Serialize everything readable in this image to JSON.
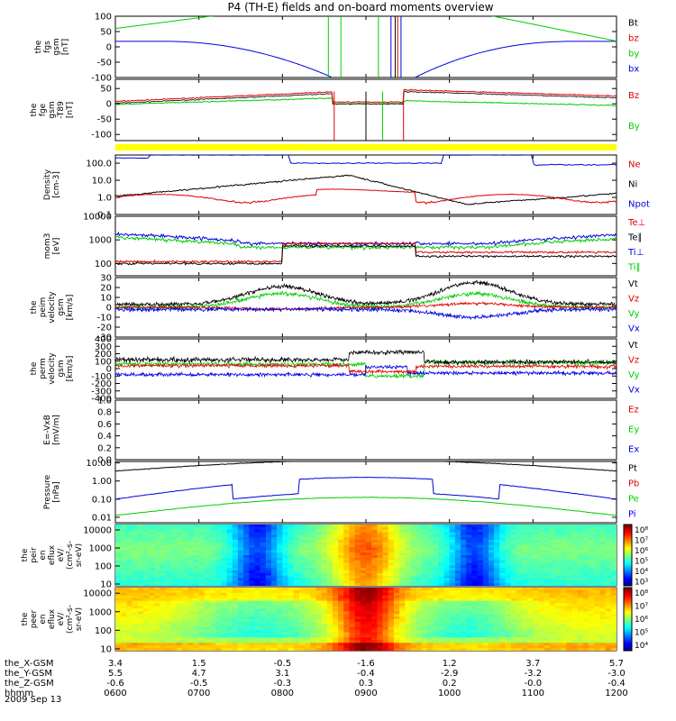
{
  "title": "P4 (TH-E) fields and on-board moments overview",
  "colors": {
    "black": "#000000",
    "red": "#dd0000",
    "green": "#00cc00",
    "blue": "#0000dd",
    "yellow": "#ffff00"
  },
  "x_ticks": [
    "0600",
    "0700",
    "0800",
    "0900",
    "1000",
    "1100",
    "1200"
  ],
  "ephemeris": {
    "rows": [
      {
        "label": "the_X-GSM",
        "values": [
          "3.4",
          "1.5",
          "-0.5",
          "-1.6",
          "1.2",
          "3.7",
          "5.7"
        ]
      },
      {
        "label": "the_Y-GSM",
        "values": [
          "5.5",
          "4.7",
          "3.1",
          "-0.4",
          "-2.9",
          "-3.2",
          "-3.0"
        ]
      },
      {
        "label": "the_Z-GSM",
        "values": [
          "-0.6",
          "-0.5",
          "-0.3",
          "0.3",
          "0.2",
          "-0.0",
          "-0.4"
        ]
      },
      {
        "label": "hhmm",
        "values": [
          "0600",
          "0700",
          "0800",
          "0900",
          "1000",
          "1100",
          "1200"
        ]
      }
    ],
    "date": "2009 Sep 13"
  },
  "chart_data": [
    {
      "type": "line",
      "id": "p1",
      "ylabel": [
        "the",
        "fgs",
        "gsm",
        "[nT]"
      ],
      "ylim": [
        -100,
        100
      ],
      "yticks": [
        "100",
        "50",
        "0",
        "-50",
        "-100"
      ],
      "legend": [
        {
          "name": "Bt",
          "color": "black"
        },
        {
          "name": "bz",
          "color": "red"
        },
        {
          "name": "by",
          "color": "green"
        },
        {
          "name": "bx",
          "color": "blue"
        }
      ]
    },
    {
      "type": "line",
      "id": "p2",
      "ylabel": [
        "the",
        "fge",
        "gsm",
        "-T89",
        "[nT]"
      ],
      "ylim": [
        -120,
        80
      ],
      "yticks": [
        "50",
        "0",
        "-50",
        "-100"
      ],
      "legend": [
        {
          "name": "Bz",
          "color": "red"
        },
        {
          "name": "By",
          "color": "green"
        }
      ]
    },
    {
      "type": "line",
      "id": "p3",
      "ylabel": [
        "Density",
        "[cm-3]"
      ],
      "log": true,
      "ylim": [
        0.1,
        300
      ],
      "yticks": [
        "100.0",
        "10.0",
        "1.0",
        "0.1"
      ],
      "legend": [
        {
          "name": "Ne",
          "color": "red"
        },
        {
          "name": "Ni",
          "color": "black"
        },
        {
          "name": "Npot",
          "color": "blue"
        }
      ]
    },
    {
      "type": "line",
      "id": "p4",
      "ylabel": [
        "mom3",
        "[eV]"
      ],
      "log": true,
      "ylim": [
        30,
        10000
      ],
      "yticks": [
        "10000",
        "1000",
        "100"
      ],
      "legend": [
        {
          "name": "Te⊥",
          "color": "red"
        },
        {
          "name": "Te∥",
          "color": "black"
        },
        {
          "name": "Ti⊥",
          "color": "blue"
        },
        {
          "name": "Ti∥",
          "color": "green"
        }
      ]
    },
    {
      "type": "line",
      "id": "p5",
      "ylabel": [
        "the",
        "peim",
        "velocity",
        "gsm",
        "[km/s]"
      ],
      "ylim": [
        -30,
        30
      ],
      "yticks": [
        "30",
        "20",
        "10",
        "0",
        "-10",
        "-20",
        "-30"
      ],
      "legend": [
        {
          "name": "Vt",
          "color": "black"
        },
        {
          "name": "Vz",
          "color": "red"
        },
        {
          "name": "Vy",
          "color": "green"
        },
        {
          "name": "Vx",
          "color": "blue"
        }
      ]
    },
    {
      "type": "line",
      "id": "p6",
      "ylabel": [
        "the",
        "perm",
        "velocity",
        "gsm",
        "[km/s]"
      ],
      "ylim": [
        -400,
        400
      ],
      "yticks": [
        "400",
        "300",
        "200",
        "100",
        "0",
        "-100",
        "-200",
        "-300",
        "-400"
      ],
      "legend": [
        {
          "name": "Vt",
          "color": "black"
        },
        {
          "name": "Vz",
          "color": "red"
        },
        {
          "name": "Vy",
          "color": "green"
        },
        {
          "name": "Vx",
          "color": "blue"
        }
      ]
    },
    {
      "type": "line",
      "id": "p7",
      "ylabel": [
        "E=-VxB",
        "[mV/m]"
      ],
      "ylim": [
        0,
        1
      ],
      "yticks": [
        "1.0",
        "0.8",
        "0.6",
        "0.4",
        "0.2",
        "0.0"
      ],
      "legend": [
        {
          "name": "Ez",
          "color": "red"
        },
        {
          "name": "Ey",
          "color": "green"
        },
        {
          "name": "Ex",
          "color": "blue"
        }
      ]
    },
    {
      "type": "line",
      "id": "p8",
      "ylabel": [
        "Pressure",
        "[nPa]"
      ],
      "log": true,
      "ylim": [
        0.005,
        12
      ],
      "yticks": [
        "10.00",
        "1.00",
        "0.10",
        "0.01"
      ],
      "legend": [
        {
          "name": "Pt",
          "color": "black"
        },
        {
          "name": "Pb",
          "color": "red"
        },
        {
          "name": "Pe",
          "color": "green"
        },
        {
          "name": "Pi",
          "color": "blue"
        }
      ]
    },
    {
      "type": "heatmap",
      "id": "p9",
      "ylabel": [
        "the",
        "peir",
        "en",
        "eflux",
        "eV/",
        "(cm²-s-",
        "sr-eV)"
      ],
      "yticks": [
        "10000",
        "1000",
        "100",
        "10"
      ],
      "colorbar": [
        "10⁸",
        "10⁷",
        "10⁶",
        "10⁵",
        "10⁴",
        "10³"
      ]
    },
    {
      "type": "heatmap",
      "id": "p10",
      "ylabel": [
        "the",
        "peer",
        "en",
        "eflux",
        "eV/",
        "(cm²-s-",
        "sr-eV)"
      ],
      "yticks": [
        "10000",
        "1000",
        "100",
        "10"
      ],
      "colorbar": [
        "10⁸",
        "10⁷",
        "10⁶",
        "10⁵",
        "10⁴"
      ]
    }
  ]
}
